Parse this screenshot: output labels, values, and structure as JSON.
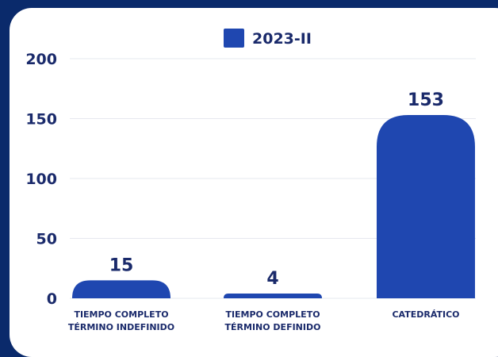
{
  "chart_data": {
    "type": "bar",
    "categories": [
      [
        "TIEMPO COMPLETO",
        "TÉRMINO INDEFINIDO"
      ],
      [
        "TIEMPO COMPLETO",
        "TÉRMINO DEFINIDO"
      ],
      [
        "CATEDRÁTICO"
      ]
    ],
    "series": [
      {
        "name": "2023-II",
        "values": [
          15,
          4,
          153
        ]
      }
    ],
    "ylim": [
      0,
      200
    ],
    "yticks": [
      "0",
      "50",
      "100",
      "150",
      "200"
    ],
    "data_labels": [
      "15",
      "4",
      "153"
    ],
    "grid": true,
    "legend_position": "top-center",
    "colors": {
      "bar": "#1f47b0",
      "axis_text": "#1a2a6b",
      "grid": "#e6e8ef",
      "background": "#0a2a6b",
      "card": "#ffffff"
    }
  }
}
